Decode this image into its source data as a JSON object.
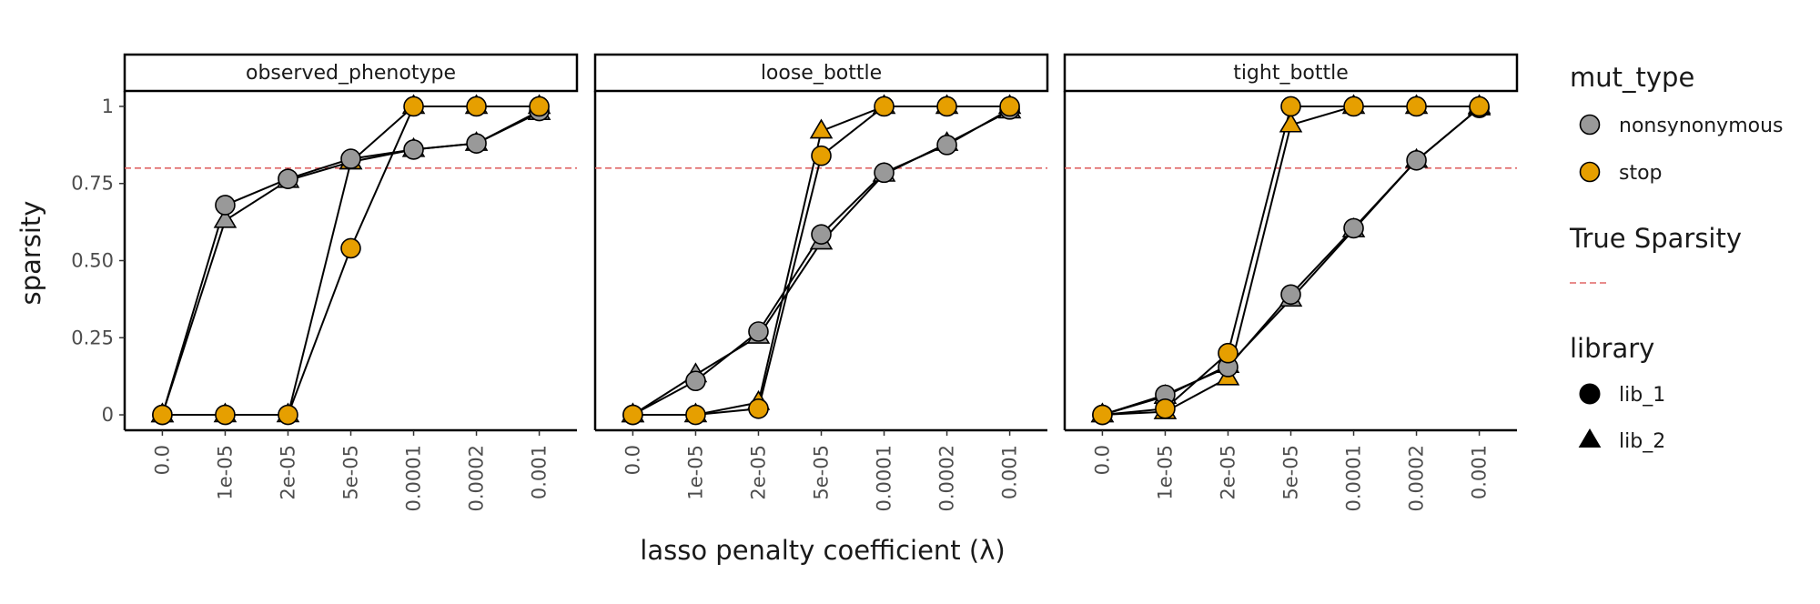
{
  "chart_data": {
    "type": "scatter",
    "panels": [
      "observed_phenotype",
      "loose_bottle",
      "tight_bottle"
    ],
    "x_categories": [
      "0.0",
      "1e-05",
      "2e-05",
      "5e-05",
      "0.0001",
      "0.0002",
      "0.001"
    ],
    "xlabel": "lasso penalty coefficient (λ)",
    "ylabel": "sparsity",
    "y_ticks": [
      {
        "value": 0,
        "label": "0"
      },
      {
        "value": 0.25,
        "label": "0.25"
      },
      {
        "value": 0.5,
        "label": "0.50"
      },
      {
        "value": 0.75,
        "label": "0.75"
      },
      {
        "value": 1,
        "label": "1"
      }
    ],
    "ylim": [
      -0.05,
      1.05
    ],
    "true_sparsity": 0.8,
    "true_sparsity_color": "#e06666",
    "mut_type_colors": {
      "nonsynonymous": "#999999",
      "stop": "#E69F00"
    },
    "series": [
      {
        "panel": "observed_phenotype",
        "mut_type": "nonsynonymous",
        "library": "lib_1",
        "values": [
          0,
          0.68,
          0.765,
          0.83,
          0.86,
          0.88,
          0.985
        ]
      },
      {
        "panel": "observed_phenotype",
        "mut_type": "nonsynonymous",
        "library": "lib_2",
        "values": [
          0,
          0.63,
          0.76,
          0.82,
          0.86,
          0.88,
          0.98
        ]
      },
      {
        "panel": "observed_phenotype",
        "mut_type": "stop",
        "library": "lib_1",
        "values": [
          0,
          0,
          0,
          0.54,
          1,
          1,
          1
        ]
      },
      {
        "panel": "observed_phenotype",
        "mut_type": "stop",
        "library": "lib_2",
        "values": [
          0,
          0,
          0,
          0.82,
          1,
          1,
          1
        ]
      },
      {
        "panel": "loose_bottle",
        "mut_type": "nonsynonymous",
        "library": "lib_1",
        "values": [
          0,
          0.11,
          0.27,
          0.585,
          0.785,
          0.875,
          0.99
        ]
      },
      {
        "panel": "loose_bottle",
        "mut_type": "nonsynonymous",
        "library": "lib_2",
        "values": [
          0,
          0.13,
          0.255,
          0.56,
          0.78,
          0.88,
          0.985
        ]
      },
      {
        "panel": "loose_bottle",
        "mut_type": "stop",
        "library": "lib_1",
        "values": [
          0,
          0,
          0.02,
          0.84,
          1,
          1,
          1
        ]
      },
      {
        "panel": "loose_bottle",
        "mut_type": "stop",
        "library": "lib_2",
        "values": [
          0,
          0,
          0.04,
          0.92,
          1,
          1,
          1
        ]
      },
      {
        "panel": "tight_bottle",
        "mut_type": "nonsynonymous",
        "library": "lib_1",
        "values": [
          0,
          0.065,
          0.155,
          0.39,
          0.605,
          0.825,
          0.995
        ]
      },
      {
        "panel": "tight_bottle",
        "mut_type": "nonsynonymous",
        "library": "lib_2",
        "values": [
          0,
          0.06,
          0.16,
          0.375,
          0.6,
          0.825,
          0.995
        ]
      },
      {
        "panel": "tight_bottle",
        "mut_type": "stop",
        "library": "lib_1",
        "values": [
          0,
          0.02,
          0.2,
          1,
          1,
          1,
          1
        ]
      },
      {
        "panel": "tight_bottle",
        "mut_type": "stop",
        "library": "lib_2",
        "values": [
          0,
          0.01,
          0.12,
          0.94,
          1,
          1,
          1
        ]
      }
    ],
    "legend": {
      "placement": "right",
      "mut_type_title": "mut_type",
      "mut_type_items": [
        "nonsynonymous",
        "stop"
      ],
      "true_sparsity_title": "True Sparsity",
      "library_title": "library",
      "library_items": [
        "lib_1",
        "lib_2"
      ]
    }
  }
}
